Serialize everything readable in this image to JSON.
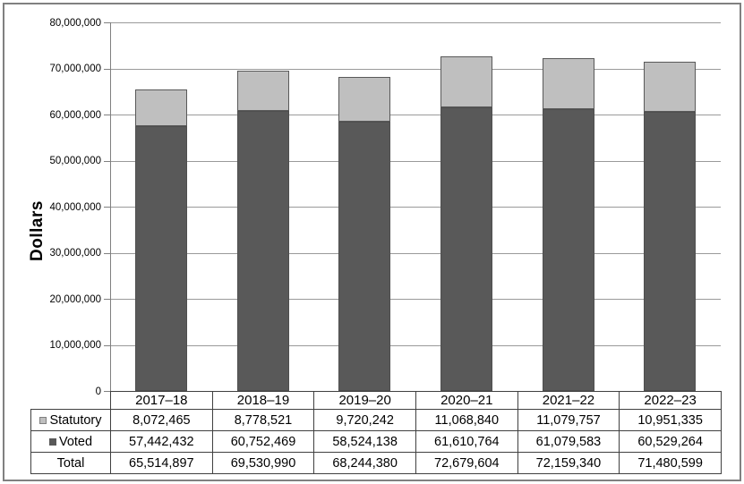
{
  "chart_data": {
    "type": "bar",
    "stacked": true,
    "title": "",
    "xlabel": "",
    "ylabel": "Dollars",
    "categories": [
      "2017–18",
      "2018–19",
      "2019–20",
      "2020–21",
      "2021–22",
      "2022–23"
    ],
    "series": [
      {
        "name": "Statutory",
        "color": "#bfbfbf",
        "border_color": "#595959",
        "values": [
          8072465,
          8778521,
          9720242,
          11068840,
          11079757,
          10951335
        ]
      },
      {
        "name": "Voted",
        "color": "#595959",
        "border_color": "#4f4f4f",
        "values": [
          57442432,
          60752469,
          58524138,
          61610764,
          61079583,
          60529264
        ]
      }
    ],
    "totals": {
      "label": "Total",
      "values": [
        65514897,
        69530990,
        68244380,
        72679604,
        72159340,
        71480599
      ]
    },
    "ylim": [
      0,
      80000000
    ],
    "ytick_step": 10000000,
    "y_tick_labels": [
      "0",
      "10,000,000",
      "20,000,000",
      "30,000,000",
      "40,000,000",
      "50,000,000",
      "60,000,000",
      "70,000,000",
      "80,000,000"
    ],
    "grid": true,
    "legend_position": "table-row-headers"
  },
  "colors": {
    "background": "#ffffff",
    "figure_border": "#808080",
    "axis": "#808080",
    "gridline": "#9a9a9a",
    "table_border": "#404040",
    "statutory": "#bfbfbf",
    "voted": "#595959",
    "text": "#000000"
  }
}
